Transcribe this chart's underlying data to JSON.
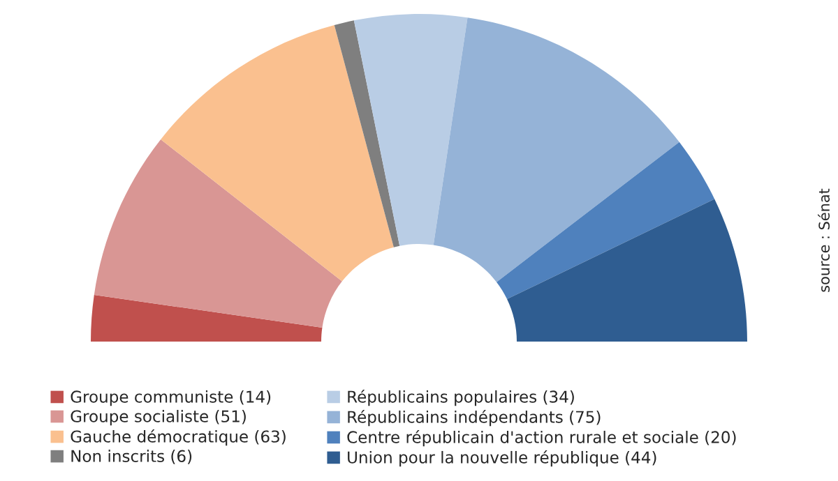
{
  "chart_data": {
    "type": "donut",
    "categories": [
      "Groupe communiste (14)",
      "Groupe socialiste (51)",
      "Gauche démocratique (63)",
      "Non inscrits (6)",
      "Républicains populaires (34)",
      "Républicains indépendants (75)",
      "Centre républicain d'action rurale et sociale (20)",
      "Union pour la nouvelle république (44)"
    ],
    "values": [
      14,
      51,
      63,
      6,
      34,
      75,
      20,
      44
    ],
    "colors": [
      "#c0504d",
      "#d99694",
      "#fac08f",
      "#7f7f7f",
      "#b9cde5",
      "#95b3d7",
      "#4f81bd",
      "#2f5d91"
    ],
    "legend": "bottom",
    "annotations": [
      "source : Sénat"
    ]
  }
}
